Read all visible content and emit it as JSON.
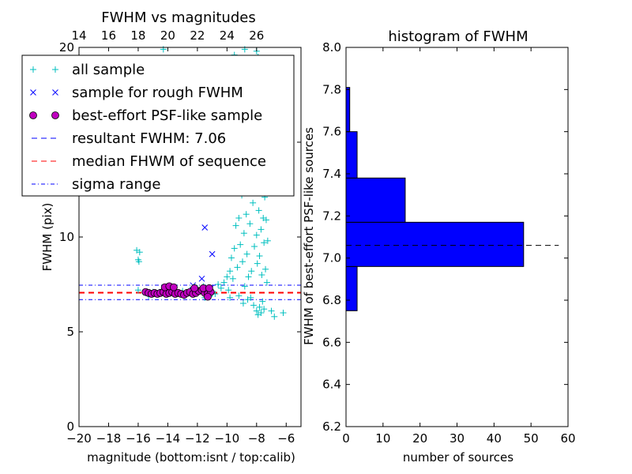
{
  "chart_data": [
    {
      "type": "scatter",
      "title": "FWHM vs magnitudes",
      "xlabel": "magnitude (bottom:isnt / top:calib)",
      "ylabel": "FWHM (pix)",
      "xlim": [
        -20,
        -5
      ],
      "ylim": [
        0,
        20
      ],
      "xticks": [
        -20,
        -18,
        -16,
        -14,
        -12,
        -10,
        -8,
        -6
      ],
      "xtick_labels": [
        "−20",
        "−18",
        "−16",
        "−14",
        "−12",
        "−10",
        "−8",
        "−6"
      ],
      "yticks": [
        0,
        5,
        10,
        15,
        20
      ],
      "ytick_labels": [
        "0",
        "5",
        "10",
        "15",
        "20"
      ],
      "top_xticks": [
        14,
        16,
        18,
        20,
        22,
        24,
        26
      ],
      "top_xtick_labels": [
        "14",
        "16",
        "18",
        "20",
        "22",
        "24",
        "26"
      ],
      "top_axis_offset": 34,
      "legend_position": "upper-left",
      "legend": [
        {
          "label": "all sample",
          "marker": "plus",
          "color": "#00bfbf"
        },
        {
          "label": "sample for rough FWHM",
          "marker": "x",
          "color": "#0000ff"
        },
        {
          "label": "best-effort PSF-like sample",
          "marker": "circle",
          "color": "#bf00bf"
        },
        {
          "label": "resultant FWHM: 7.06",
          "marker": "dashed",
          "color": "#0000ff"
        },
        {
          "label": "median FHWM of sequence",
          "marker": "dashed",
          "color": "#ff0000"
        },
        {
          "label": "sigma range",
          "marker": "dashdot",
          "color": "#0000ff"
        }
      ],
      "series": [
        {
          "name": "all sample",
          "marker": "plus",
          "color": "#00bfbf",
          "points": [
            [
              -16.1,
              9.3
            ],
            [
              -15.9,
              9.2
            ],
            [
              -16.0,
              8.8
            ],
            [
              -15.95,
              8.7
            ],
            [
              -16.0,
              7.2
            ],
            [
              -15.0,
              7.1
            ],
            [
              -13.0,
              7.15
            ],
            [
              -12.5,
              7.2
            ],
            [
              -12.0,
              7.3
            ],
            [
              -11.6,
              7.4
            ],
            [
              -11.2,
              7.2
            ],
            [
              -11.0,
              7.0
            ],
            [
              -10.8,
              7.0
            ],
            [
              -10.6,
              7.5
            ],
            [
              -10.4,
              7.3
            ],
            [
              -10.2,
              7.6
            ],
            [
              -10.0,
              7.9
            ],
            [
              -9.9,
              7.2
            ],
            [
              -9.8,
              8.2
            ],
            [
              -9.7,
              8.9
            ],
            [
              -9.6,
              7.8
            ],
            [
              -9.5,
              9.4
            ],
            [
              -9.4,
              10.6
            ],
            [
              -9.3,
              8.4
            ],
            [
              -9.2,
              11.0
            ],
            [
              -9.1,
              9.6
            ],
            [
              -9.0,
              12.2
            ],
            [
              -8.95,
              8.7
            ],
            [
              -8.9,
              13.5
            ],
            [
              -8.85,
              10.2
            ],
            [
              -8.8,
              7.4
            ],
            [
              -8.75,
              12.8
            ],
            [
              -8.7,
              11.2
            ],
            [
              -8.65,
              9.1
            ],
            [
              -8.6,
              14.3
            ],
            [
              -8.55,
              7.9
            ],
            [
              -8.5,
              15.5
            ],
            [
              -8.45,
              10.7
            ],
            [
              -8.4,
              13.1
            ],
            [
              -8.35,
              8.2
            ],
            [
              -8.3,
              16.2
            ],
            [
              -8.25,
              11.8
            ],
            [
              -8.2,
              14.8
            ],
            [
              -8.15,
              9.5
            ],
            [
              -8.1,
              12.5
            ],
            [
              -8.05,
              15.9
            ],
            [
              -8.0,
              10.1
            ],
            [
              -8.0,
              13.8
            ],
            [
              -7.95,
              8.6
            ],
            [
              -7.9,
              14.1
            ],
            [
              -7.85,
              11.4
            ],
            [
              -7.8,
              9.0
            ],
            [
              -7.8,
              16.5
            ],
            [
              -7.75,
              12.9
            ],
            [
              -7.7,
              10.4
            ],
            [
              -7.65,
              8.0
            ],
            [
              -7.6,
              13.6
            ],
            [
              -7.55,
              11.0
            ],
            [
              -7.5,
              9.7
            ],
            [
              -7.5,
              15.0
            ],
            [
              -7.45,
              12.1
            ],
            [
              -7.4,
              8.3
            ],
            [
              -7.35,
              10.9
            ],
            [
              -7.3,
              7.6
            ],
            [
              -7.25,
              9.8
            ],
            [
              -8.4,
              6.8
            ],
            [
              -8.2,
              6.4
            ],
            [
              -8.0,
              6.1
            ],
            [
              -7.9,
              5.9
            ],
            [
              -7.8,
              6.3
            ],
            [
              -7.7,
              6.0
            ],
            [
              -7.6,
              6.6
            ],
            [
              -7.5,
              6.2
            ],
            [
              -7.0,
              6.1
            ],
            [
              -6.8,
              5.8
            ],
            [
              -6.2,
              6.0
            ],
            [
              -9.2,
              6.9
            ],
            [
              -8.9,
              6.5
            ],
            [
              -8.6,
              6.7
            ],
            [
              -9.8,
              6.8
            ],
            [
              -8.6,
              17.8
            ],
            [
              -8.2,
              18.6
            ],
            [
              -7.9,
              19.5
            ],
            [
              -8.8,
              19.9
            ],
            [
              -7.5,
              17.2
            ],
            [
              -8.0,
              19.8
            ],
            [
              -7.3,
              18.1
            ],
            [
              -9.5,
              19.6
            ],
            [
              -14.3,
              19.9
            ],
            [
              -11.5,
              6.8
            ],
            [
              -12.3,
              7.0
            ],
            [
              -13.5,
              7.0
            ],
            [
              -14.5,
              7.1
            ],
            [
              -15.3,
              6.9
            ]
          ]
        },
        {
          "name": "sample for rough FWHM",
          "marker": "x",
          "color": "#0000ff",
          "points": [
            [
              -11.5,
              10.5
            ],
            [
              -11.0,
              9.1
            ],
            [
              -11.7,
              7.8
            ],
            [
              -12.3,
              7.45
            ],
            [
              -13.2,
              7.0
            ],
            [
              -14.4,
              7.1
            ],
            [
              -15.2,
              7.05
            ],
            [
              -11.1,
              7.3
            ]
          ]
        },
        {
          "name": "best-effort PSF-like sample",
          "marker": "circle",
          "color": "#bf00bf",
          "points": [
            [
              -15.5,
              7.1
            ],
            [
              -15.3,
              7.05
            ],
            [
              -15.1,
              7.0
            ],
            [
              -14.9,
              7.05
            ],
            [
              -14.7,
              7.0
            ],
            [
              -14.5,
              7.05
            ],
            [
              -14.3,
              7.1
            ],
            [
              -14.1,
              7.0
            ],
            [
              -13.9,
              7.05
            ],
            [
              -13.7,
              7.1
            ],
            [
              -13.5,
              7.0
            ],
            [
              -13.3,
              7.05
            ],
            [
              -13.1,
              7.0
            ],
            [
              -12.9,
              6.95
            ],
            [
              -12.7,
              7.05
            ],
            [
              -12.5,
              7.1
            ],
            [
              -12.3,
              7.0
            ],
            [
              -12.1,
              7.05
            ],
            [
              -11.9,
              7.15
            ],
            [
              -11.7,
              7.2
            ],
            [
              -11.5,
              7.05
            ],
            [
              -11.3,
              7.0
            ],
            [
              -11.1,
              7.1
            ],
            [
              -14.2,
              7.35
            ],
            [
              -13.9,
              7.4
            ],
            [
              -13.6,
              7.35
            ],
            [
              -12.2,
              7.3
            ],
            [
              -11.6,
              7.3
            ],
            [
              -11.2,
              7.3
            ],
            [
              -11.3,
              6.85
            ]
          ]
        }
      ],
      "reference_lines": [
        {
          "name": "resultant FWHM: 7.06",
          "y": 7.06,
          "style": "dashed",
          "color": "#0000ff"
        },
        {
          "name": "median FHWM of sequence",
          "y": 7.06,
          "style": "dashed",
          "color": "#ff0000"
        },
        {
          "name": "sigma range",
          "y": 7.46,
          "style": "dashdot",
          "color": "#0000ff"
        },
        {
          "name": "sigma range",
          "y": 6.7,
          "style": "dashdot",
          "color": "#0000ff"
        }
      ]
    },
    {
      "type": "bar",
      "orientation": "horizontal",
      "title": "histogram of FWHM",
      "xlabel": "number of sources",
      "ylabel": "FWHM of best-effort PSF-like sources",
      "xlim": [
        0,
        60
      ],
      "ylim": [
        6.2,
        8.0
      ],
      "xticks": [
        0,
        10,
        20,
        30,
        40,
        50,
        60
      ],
      "xtick_labels": [
        "0",
        "10",
        "20",
        "30",
        "40",
        "50",
        "60"
      ],
      "yticks": [
        6.2,
        6.4,
        6.6,
        6.8,
        7.0,
        7.2,
        7.4,
        7.6,
        7.8,
        8.0
      ],
      "ytick_labels": [
        "6.2",
        "6.4",
        "6.6",
        "6.8",
        "7.0",
        "7.2",
        "7.4",
        "7.6",
        "7.8",
        "8.0"
      ],
      "bar_color": "#0000ff",
      "bins": [
        {
          "from": 6.75,
          "to": 6.96,
          "count": 3
        },
        {
          "from": 6.96,
          "to": 7.17,
          "count": 48
        },
        {
          "from": 7.17,
          "to": 7.38,
          "count": 16
        },
        {
          "from": 7.38,
          "to": 7.6,
          "count": 3
        },
        {
          "from": 7.6,
          "to": 7.81,
          "count": 1
        }
      ],
      "reference_line": {
        "y": 7.06,
        "x_from": 0,
        "x_to": 57.5,
        "style": "dashed",
        "color": "#000000"
      }
    }
  ]
}
